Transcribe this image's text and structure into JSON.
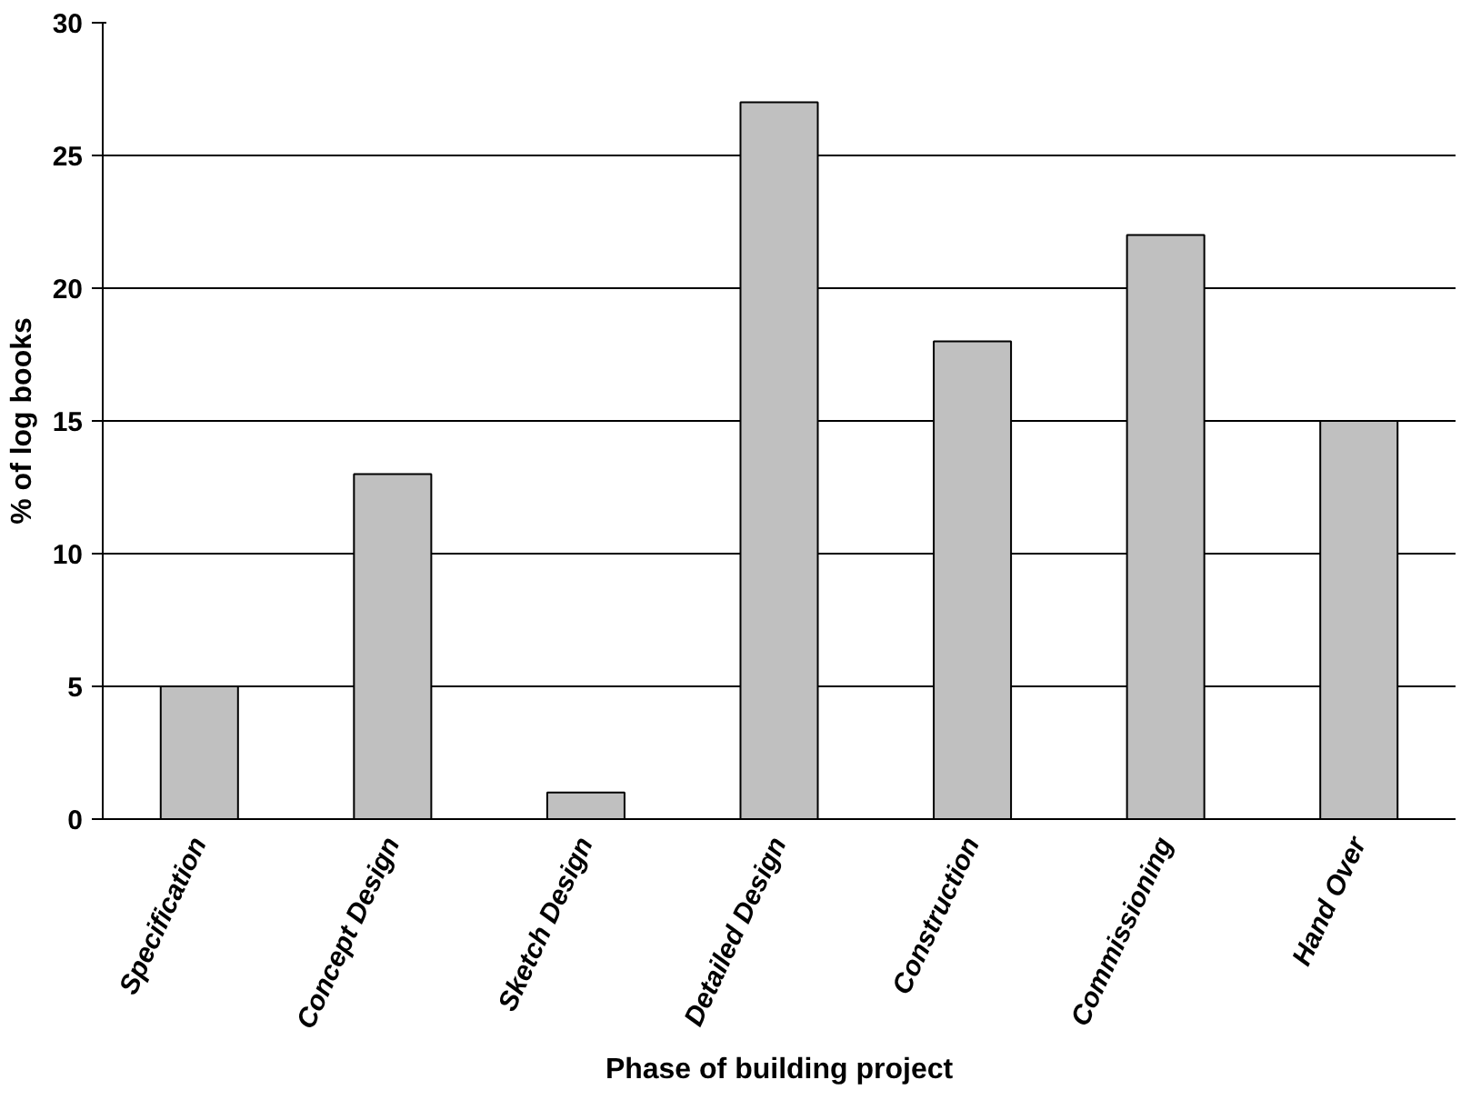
{
  "chart_data": {
    "type": "bar",
    "xlabel": "Phase of building project",
    "ylabel": "% of log books",
    "categories": [
      "Specification",
      "Concept Design",
      "Sketch Design",
      "Detailed Design",
      "Construction",
      "Commissioning",
      "Hand Over"
    ],
    "values": [
      5,
      13,
      1,
      27,
      18,
      22,
      15
    ],
    "color": "#c0c0c0",
    "ylim": [
      0,
      30
    ],
    "yticks": [
      0,
      5,
      10,
      15,
      20,
      25,
      30
    ],
    "grid": "y"
  }
}
